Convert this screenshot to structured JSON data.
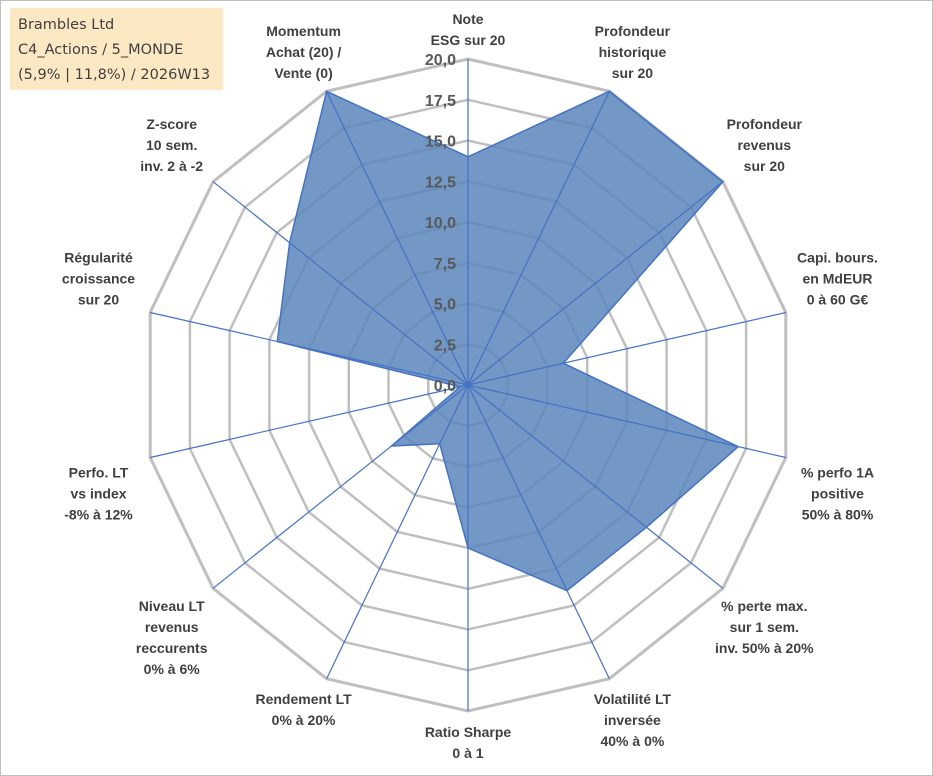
{
  "info": {
    "line1": "Brambles Ltd",
    "line2": "C4_Actions / 5_MONDE",
    "line3": "(5,9% | 11,8%) / 2026W13"
  },
  "chart_data": {
    "type": "radar",
    "rmin": 0,
    "rmax": 20,
    "ticks": [
      "0,0",
      "2,5",
      "5,0",
      "7,5",
      "10,0",
      "12,5",
      "15,0",
      "17,5",
      "20,0"
    ],
    "axes": [
      [
        "Note",
        "ESG sur 20"
      ],
      [
        "Profondeur",
        "historique",
        "sur 20"
      ],
      [
        "Profondeur",
        "revenus",
        "sur 20"
      ],
      [
        "Capi. bours.",
        "en MdEUR",
        "0 à 60 G€"
      ],
      [
        "% perfo 1A",
        "positive",
        "50% à 80%"
      ],
      [
        "% perte max.",
        "sur 1 sem.",
        "inv. 50% à 20%"
      ],
      [
        "Volatilité LT",
        "inversée",
        "40% à 0%"
      ],
      [
        "Ratio Sharpe",
        "0 à 1"
      ],
      [
        "Rendement LT",
        "0% à 20%"
      ],
      [
        "Niveau LT",
        "revenus",
        "reccurents",
        "0% à 6%"
      ],
      [
        "Perfo. LT",
        "vs index",
        "-8% à 12%"
      ],
      [
        "Régularité",
        "croissance",
        "sur 20"
      ],
      [
        "Z-score",
        "10 sem.",
        "inv. 2 à -2"
      ],
      [
        "Momentum",
        "Achat (20) /",
        "Vente (0)"
      ]
    ],
    "series": [
      {
        "values": [
          14,
          20,
          20,
          6,
          17,
          14,
          14,
          10,
          4,
          6,
          0.5,
          12,
          14,
          20
        ]
      }
    ],
    "colors": {
      "fill": "#5a86bb",
      "stroke": "#4472c4",
      "grid": "#bfbfbf",
      "spoke": "#4472c4"
    }
  }
}
